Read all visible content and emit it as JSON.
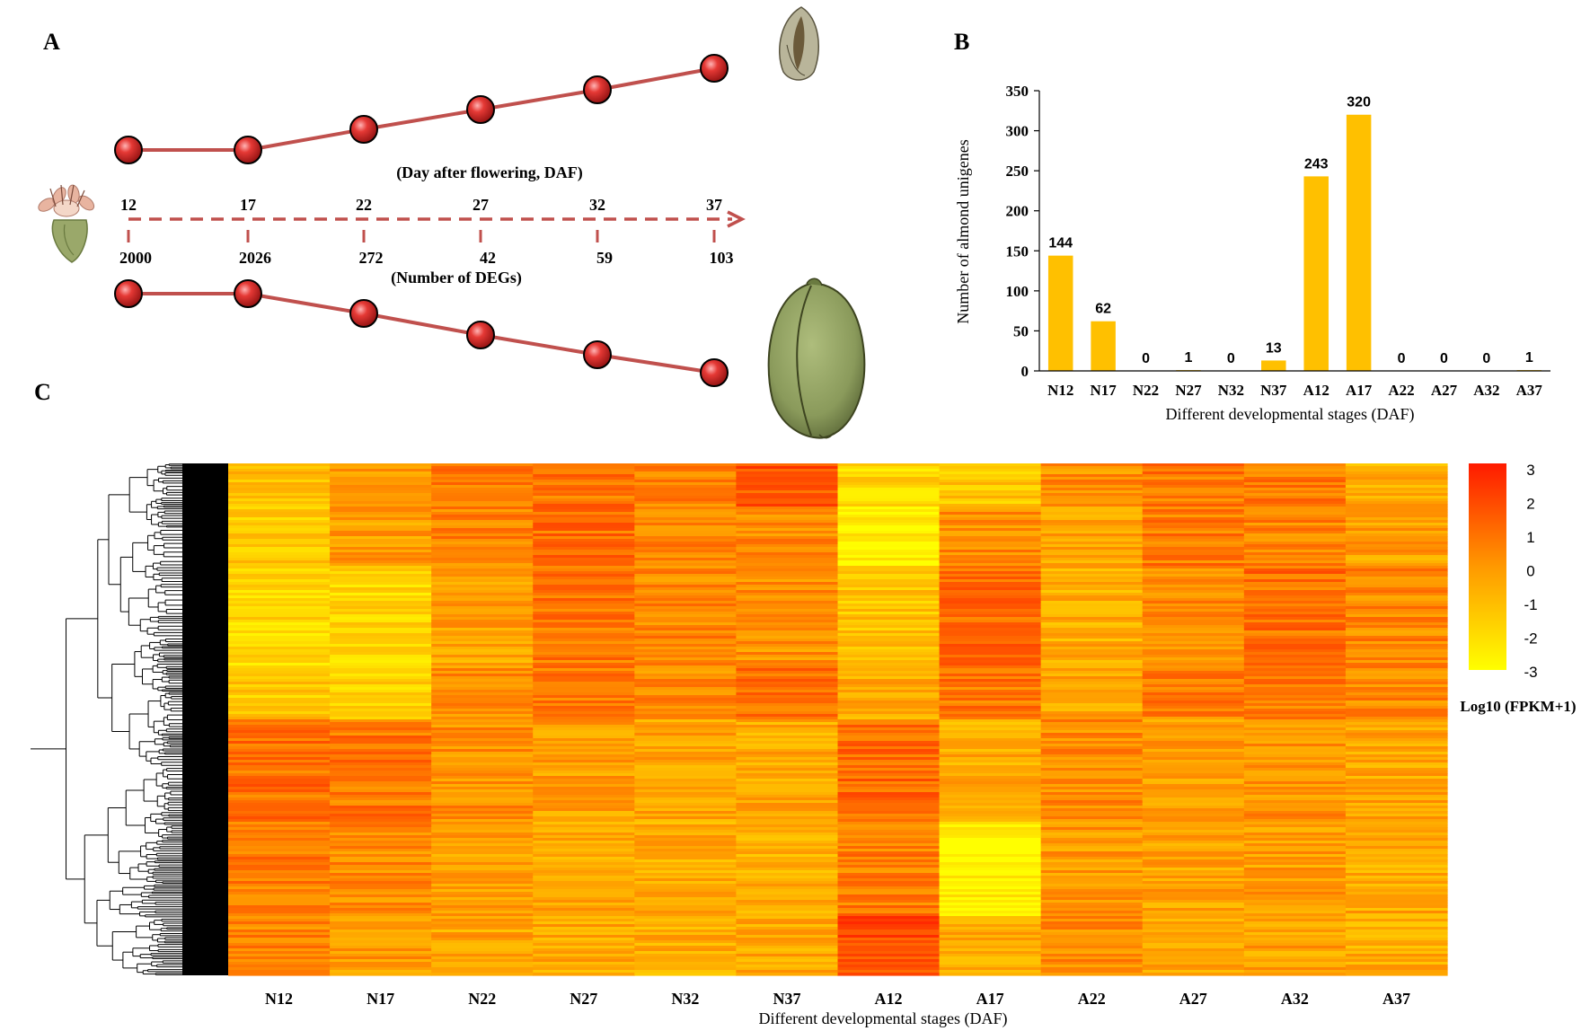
{
  "panels": {
    "a": "A",
    "b": "B",
    "c": "C"
  },
  "colors": {
    "timeline": "#c0504d",
    "node_fill": "#c62828",
    "bar": "#ffc000",
    "heat_low": "#ffff00",
    "heat_mid": "#ff9900",
    "heat_high": "#ff1a00"
  },
  "panel_a": {
    "top_caption": "(Day after flowering, DAF)",
    "bottom_caption": "(Number of DEGs)",
    "days": [
      "12",
      "17",
      "22",
      "27",
      "32",
      "37"
    ],
    "deg_counts": [
      "2000",
      "2026",
      "272",
      "42",
      "59",
      "103"
    ],
    "icons": {
      "flower": "flower-icon",
      "small_fruit": "small-fruit-icon",
      "large_fruit": "large-fruit-icon"
    }
  },
  "chart_data": [
    {
      "type": "bar",
      "title": "",
      "categories": [
        "N12",
        "N17",
        "N22",
        "N27",
        "N32",
        "N37",
        "A12",
        "A17",
        "A22",
        "A27",
        "A32",
        "A37"
      ],
      "values": [
        144,
        62,
        0,
        1,
        0,
        13,
        243,
        320,
        0,
        0,
        0,
        1
      ],
      "data_labels": [
        "144",
        "62",
        "0",
        "1",
        "0",
        "13",
        "243",
        "320",
        "0",
        "0",
        "0",
        "1"
      ],
      "xlabel": "Different developmental stages (DAF)",
      "ylabel": "Number of almond unigenes",
      "ylim": [
        0,
        350
      ],
      "yticks": [
        "0",
        "50",
        "100",
        "150",
        "200",
        "250",
        "300",
        "350"
      ]
    },
    {
      "type": "heatmap",
      "title": "",
      "columns": [
        "N12",
        "N17",
        "N22",
        "N27",
        "N32",
        "N37",
        "A12",
        "A17",
        "A22",
        "A27",
        "A32",
        "A37"
      ],
      "xlabel": "Different developmental stages (DAF)",
      "colorbar_label": "Log10 (FPKM+1)",
      "colorbar_ticks": [
        "3",
        "2",
        "1",
        "0",
        "-1",
        "-2",
        "-3"
      ],
      "value_range": [
        -3,
        3
      ],
      "row_dendrogram": true
    }
  ]
}
